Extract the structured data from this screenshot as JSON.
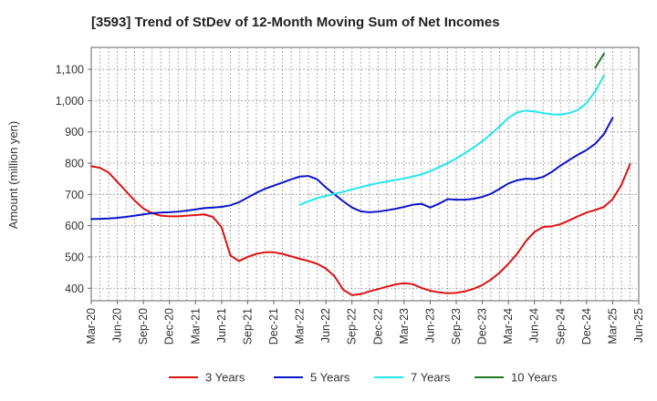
{
  "chart_data": {
    "type": "line",
    "title": "[3593]  Trend of StDev of 12-Month Moving Sum of Net Incomes",
    "xlabel": "",
    "ylabel": "Amount (million yen)",
    "ylim": [
      360,
      1170
    ],
    "y_ticks": [
      400,
      500,
      600,
      700,
      800,
      900,
      1000,
      1100
    ],
    "y_tick_labels": [
      "400",
      "500",
      "600",
      "700",
      "800",
      "900",
      "1,000",
      "1,100"
    ],
    "x_tick_labels": [
      "Mar-20",
      "Jun-20",
      "Sep-20",
      "Dec-20",
      "Mar-21",
      "Jun-21",
      "Sep-21",
      "Dec-21",
      "Mar-22",
      "Jun-22",
      "Sep-22",
      "Dec-22",
      "Mar-23",
      "Jun-23",
      "Sep-23",
      "Dec-23",
      "Mar-24",
      "Jun-24",
      "Sep-24",
      "Dec-24",
      "Mar-25",
      "Jun-25"
    ],
    "grid": true,
    "legend_position": "bottom",
    "series": [
      {
        "name": "3 Years",
        "color": "#dd1111",
        "start_month": "Mar-20",
        "values": [
          790,
          785,
          770,
          740,
          710,
          680,
          655,
          640,
          632,
          630,
          630,
          632,
          634,
          636,
          628,
          595,
          505,
          487,
          500,
          510,
          515,
          515,
          510,
          502,
          494,
          487,
          478,
          463,
          438,
          395,
          378,
          381,
          390,
          397,
          405,
          412,
          416,
          413,
          401,
          392,
          387,
          384,
          385,
          390,
          398,
          410,
          428,
          450,
          478,
          510,
          550,
          580,
          596,
          598,
          605,
          617,
          630,
          642,
          650,
          660,
          685,
          730,
          797
        ]
      },
      {
        "name": "5 Years",
        "color": "#0a14c8",
        "start_month": "Mar-20",
        "values": [
          621,
          622,
          623,
          625,
          628,
          632,
          636,
          640,
          642,
          643,
          645,
          648,
          652,
          656,
          658,
          660,
          665,
          675,
          690,
          705,
          718,
          728,
          738,
          748,
          757,
          759,
          748,
          722,
          700,
          678,
          658,
          646,
          643,
          645,
          649,
          654,
          660,
          667,
          670,
          658,
          670,
          685,
          683,
          683,
          686,
          692,
          702,
          718,
          735,
          745,
          750,
          749,
          756,
          772,
          792,
          810,
          827,
          842,
          862,
          893,
          945
        ]
      },
      {
        "name": "7 Years",
        "color": "#22e6ee",
        "start_month": "Mar-22",
        "values": [
          667,
          678,
          688,
          695,
          702,
          708,
          716,
          723,
          730,
          736,
          741,
          746,
          751,
          757,
          764,
          774,
          787,
          800,
          815,
          832,
          850,
          870,
          893,
          918,
          945,
          962,
          968,
          965,
          960,
          956,
          955,
          960,
          970,
          992,
          1030,
          1080
        ]
      },
      {
        "name": "10 Years",
        "color": "#227a22",
        "start_month": "Jan-25",
        "values": [
          1105,
          1150
        ]
      }
    ]
  }
}
